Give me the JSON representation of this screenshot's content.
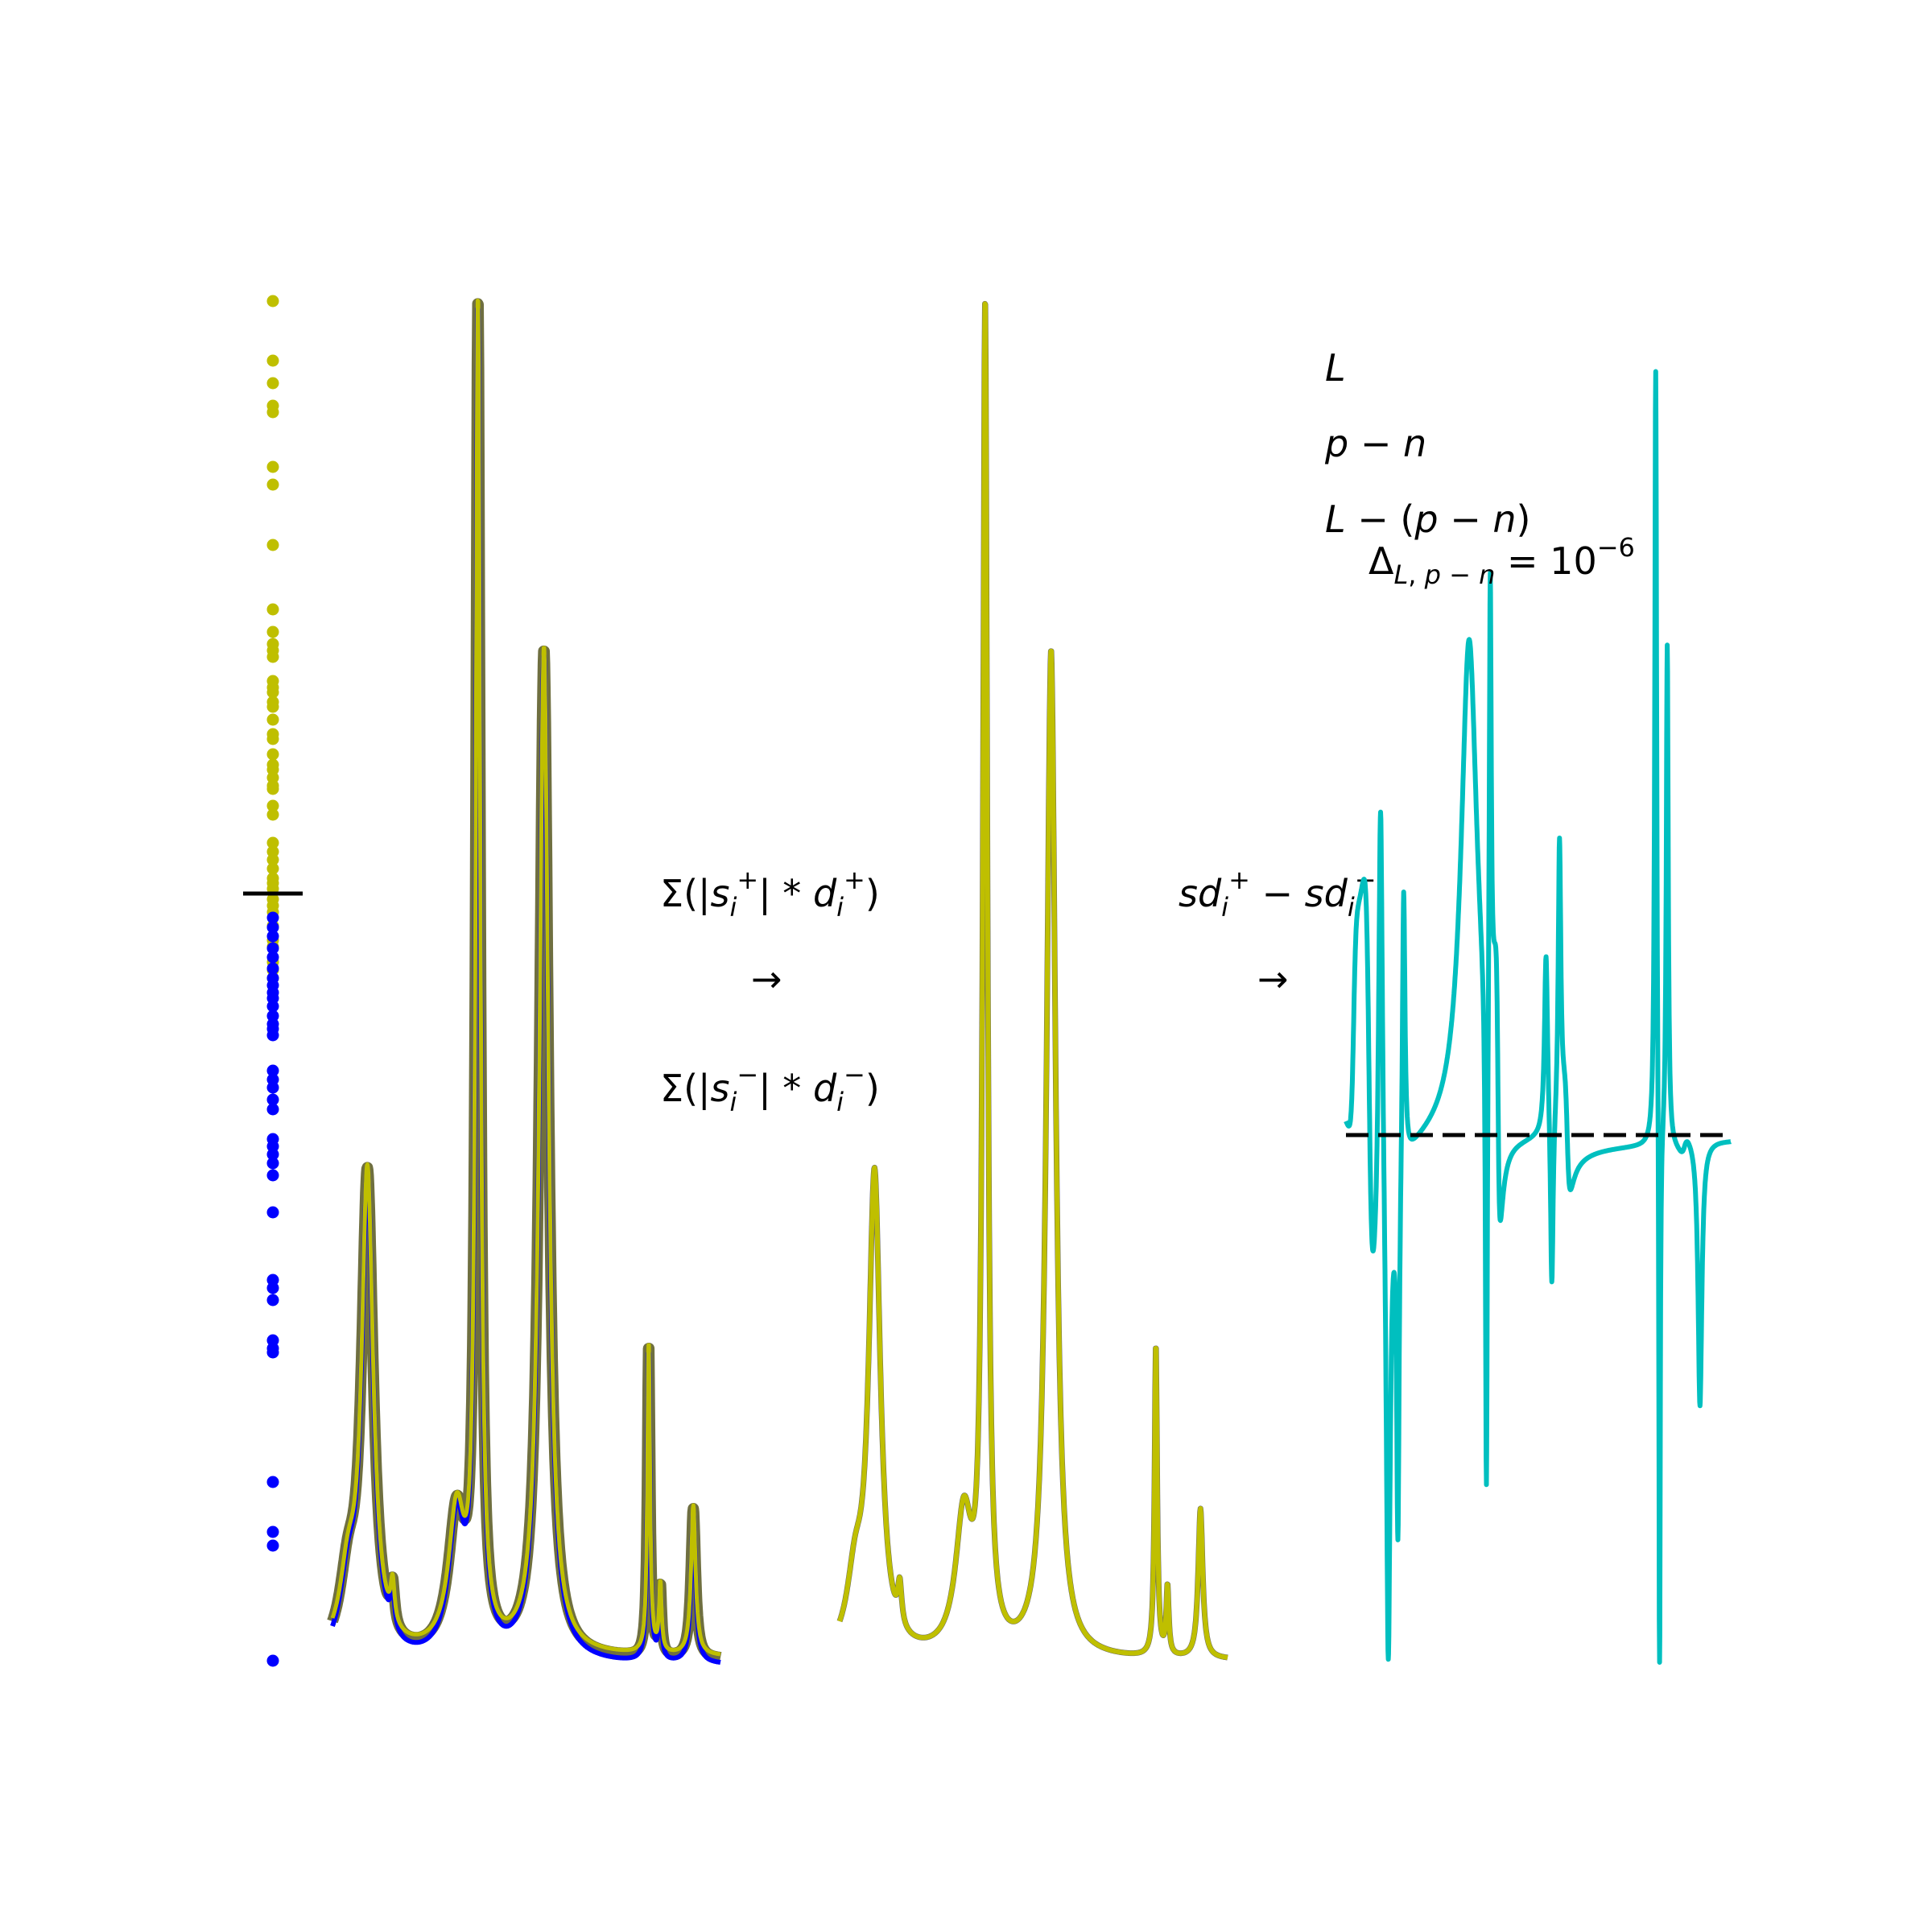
{
  "colors": {
    "positive": "#bfbf00",
    "negative": "#0000ff",
    "difference": "#00bfbf",
    "L": "#bf00bf",
    "ink": "#000000"
  },
  "panel1": {
    "description_points": "positive (yellow) and negative (blue) coefficient dots separated by a black tick",
    "positive_dot_count": 45,
    "negative_dot_count": 40
  },
  "arrow1": {
    "top_formula": "Σ(|s_i^+| * d_i^+)",
    "bottom_formula": "Σ(|s_i^-| * d_i^-)",
    "arrow": "→"
  },
  "arrow2": {
    "formula": "sd_i^+ − sd_i^-",
    "arrow": "→"
  },
  "legend": {
    "L": "L",
    "p_minus_n": "p − n",
    "L_minus_pn": "L − (p − n)",
    "delta": "Δ_{L, p − n} = 10^{−6}"
  }
}
